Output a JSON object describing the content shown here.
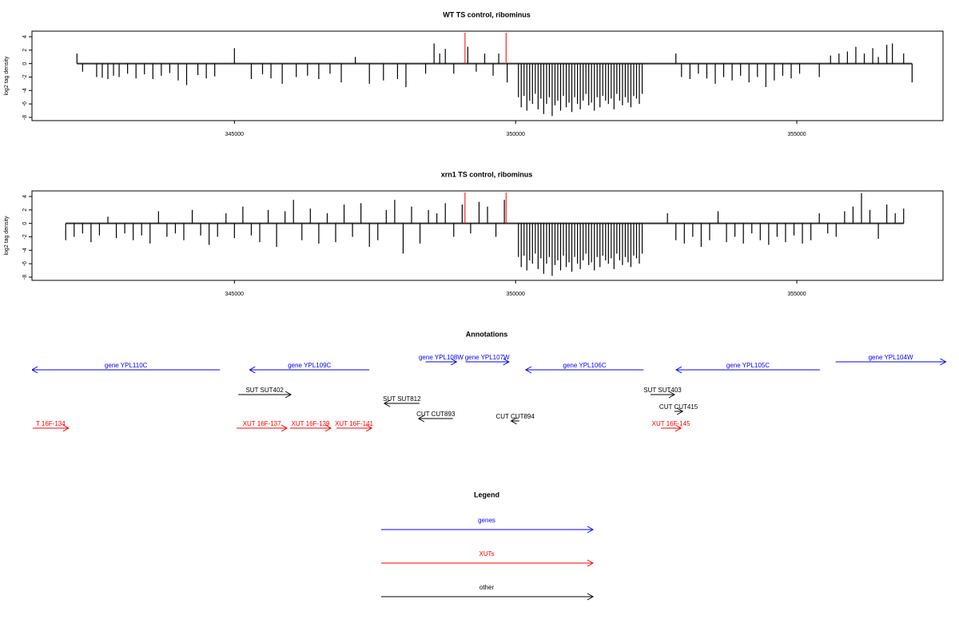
{
  "chart_data": [
    {
      "type": "bar",
      "title": "WT TS control, ribominus",
      "ylabel": "log2 tag density",
      "color": "#000000",
      "x": [
        342200,
        342300,
        342550,
        342650,
        342750,
        342850,
        342950,
        343100,
        343250,
        343400,
        343550,
        343700,
        343850,
        344000,
        344150,
        344350,
        344500,
        344650,
        345000,
        345300,
        345500,
        345650,
        345850,
        346100,
        346300,
        346500,
        346700,
        346900,
        347150,
        347400,
        347650,
        347900,
        348050,
        348400,
        348550,
        348650,
        348750,
        348900,
        349150,
        349300,
        349450,
        349600,
        349700,
        349850,
        350050,
        350100,
        350150,
        350200,
        350250,
        350300,
        350350,
        350400,
        350450,
        350500,
        350550,
        350600,
        350650,
        350700,
        350750,
        350800,
        350850,
        350900,
        350950,
        351000,
        351050,
        351100,
        351150,
        351200,
        351250,
        351300,
        351350,
        351400,
        351450,
        351500,
        351550,
        351600,
        351650,
        351700,
        351750,
        351800,
        351850,
        351900,
        351950,
        352000,
        352050,
        352100,
        352150,
        352200,
        352250,
        352850,
        352950,
        353100,
        353250,
        353400,
        353550,
        353700,
        353850,
        354000,
        354150,
        354300,
        354450,
        354600,
        354750,
        354900,
        355050,
        355400,
        355600,
        355750,
        355900,
        356050,
        356200,
        356350,
        356450,
        356600,
        356700,
        356900,
        357050
      ],
      "values": [
        1.5,
        -1.2,
        -2,
        -2.1,
        -2.3,
        -1.8,
        -2,
        -1.5,
        -2.2,
        -1.6,
        -2.3,
        -1.8,
        -1.4,
        -2.5,
        -3.2,
        -1.7,
        -2.2,
        -1.9,
        2.3,
        -2.3,
        -1.6,
        -2.2,
        -3,
        -2,
        -1.8,
        -2.3,
        -1.5,
        -2.8,
        1,
        -3,
        -2.5,
        -2.3,
        -3.5,
        -1.5,
        3,
        1.5,
        2.2,
        -1.5,
        2.5,
        -1.2,
        1.5,
        -1.8,
        1.5,
        -2.8,
        -5,
        -6.5,
        -4.8,
        -7,
        -5.5,
        -6,
        -4.5,
        -6.8,
        -5.2,
        -7.5,
        -6,
        -5,
        -7.8,
        -6.2,
        -5.5,
        -7,
        -4.8,
        -6.5,
        -5.8,
        -7.2,
        -5,
        -6,
        -6.8,
        -5.5,
        -4.5,
        -6.2,
        -5.8,
        -7,
        -5,
        -6.5,
        -4.8,
        -5.5,
        -6,
        -5.2,
        -6.8,
        -4.5,
        -5.5,
        -6.2,
        -5,
        -5.8,
        -6.5,
        -4.8,
        -5.2,
        -6,
        -4.5,
        1.5,
        -2,
        -2.3,
        -1.5,
        -2.2,
        -3,
        -2,
        -2.5,
        -1.8,
        -2.8,
        -2,
        -3.5,
        -2.5,
        -1.8,
        -2.2,
        -1.5,
        -2,
        1.2,
        1.5,
        1.8,
        2.5,
        1.5,
        2.3,
        1,
        2.8,
        3,
        1.5,
        -2.8
      ],
      "highlight_x": [
        349100,
        349830
      ],
      "highlight_color": "#ff0000",
      "xlim": [
        341400,
        357600
      ],
      "ylim": [
        -8.48,
        4.83
      ],
      "xticks": [
        345000,
        350000,
        355000
      ],
      "yticks": [
        -8,
        -6,
        -4,
        -2,
        0,
        2,
        4
      ]
    },
    {
      "type": "bar",
      "title": "xrn1 TS control, ribominus",
      "ylabel": "log2 tag density",
      "color": "#000000",
      "x": [
        342000,
        342150,
        342300,
        342450,
        342600,
        342750,
        342900,
        343050,
        343200,
        343350,
        343500,
        343650,
        343800,
        343950,
        344100,
        344250,
        344400,
        344550,
        344700,
        344850,
        345000,
        345150,
        345300,
        345450,
        345600,
        345750,
        345900,
        346050,
        346200,
        346350,
        346500,
        346650,
        346800,
        346950,
        347100,
        347250,
        347400,
        347550,
        347700,
        347850,
        348000,
        348150,
        348300,
        348450,
        348600,
        348750,
        348900,
        349050,
        349200,
        349350,
        349500,
        349650,
        349800,
        350050,
        350100,
        350150,
        350200,
        350250,
        350300,
        350350,
        350400,
        350450,
        350500,
        350550,
        350600,
        350650,
        350700,
        350750,
        350800,
        350850,
        350900,
        350950,
        351000,
        351050,
        351100,
        351150,
        351200,
        351250,
        351300,
        351350,
        351400,
        351450,
        351500,
        351550,
        351600,
        351650,
        351700,
        351750,
        351800,
        351850,
        351900,
        351950,
        352000,
        352050,
        352100,
        352150,
        352200,
        352250,
        352700,
        352850,
        353000,
        353150,
        353300,
        353450,
        353600,
        353750,
        353900,
        354050,
        354200,
        354350,
        354500,
        354650,
        354800,
        354950,
        355100,
        355250,
        355400,
        355550,
        355700,
        355850,
        356000,
        356150,
        356300,
        356450,
        356600,
        356750,
        356900
      ],
      "values": [
        -2.5,
        -2,
        -1.5,
        -2.8,
        -1.8,
        1,
        -2.2,
        -1.5,
        -2.5,
        -1.8,
        -3,
        1.8,
        -2,
        -1.5,
        -2.5,
        2,
        -1.8,
        -3.2,
        -2,
        1.5,
        -2.2,
        2.5,
        -1.8,
        -2.8,
        2,
        -3.5,
        1.8,
        3.5,
        -2.5,
        2.2,
        -3,
        1.5,
        -2.8,
        2.8,
        -2,
        3,
        -3.5,
        -2.5,
        2,
        3.5,
        -4.5,
        2.5,
        -3,
        2,
        1.5,
        3,
        -2,
        2.8,
        -1.5,
        3.2,
        2.5,
        -2,
        3.5,
        -5,
        -6.5,
        -4.8,
        -7,
        -5.5,
        -6,
        -4.5,
        -6.8,
        -5.2,
        -7.5,
        -6,
        -5,
        -7.8,
        -6.2,
        -5.5,
        -7,
        -4.8,
        -6.5,
        -5.8,
        -7.2,
        -5,
        -6,
        -6.8,
        -5.5,
        -4.5,
        -6.2,
        -5.8,
        -7,
        -5,
        -6.5,
        -4.8,
        -5.5,
        -6,
        -5.2,
        -6.8,
        -4.5,
        -5.5,
        -6.2,
        -5,
        -5.8,
        -6.5,
        -4.8,
        -5.2,
        -6,
        -4.5,
        1.5,
        -2.5,
        -3,
        -2,
        -3.5,
        -2.5,
        1.8,
        -2.8,
        -2,
        -3,
        -1.5,
        -2.5,
        -3.2,
        -2,
        -2.8,
        -1.8,
        -3,
        -2.5,
        1.5,
        -1.5,
        -2,
        1.8,
        2.5,
        4.5,
        2,
        -2.3,
        2.8,
        1.5,
        2.2
      ],
      "highlight_x": [
        349100,
        349830
      ],
      "highlight_color": "#ff0000",
      "xlim": [
        341400,
        357600
      ],
      "ylim": [
        -8.48,
        4.83
      ],
      "xticks": [
        345000,
        350000,
        355000
      ],
      "yticks": [
        -8,
        -6,
        -4,
        -2,
        0,
        2,
        4
      ]
    }
  ],
  "annotations": {
    "title": "Annotations",
    "colors": {
      "gene": "#0000ff",
      "XUT": "#ff0000",
      "other": "#000000"
    },
    "features": [
      {
        "label": "gene YPL110C",
        "type": "gene",
        "start": 344745,
        "end": 341400
      },
      {
        "label": "gene YPL109C",
        "type": "gene",
        "start": 347400,
        "end": 345270
      },
      {
        "label": "gene YPL108W",
        "type": "gene",
        "start": 348400,
        "end": 348950
      },
      {
        "label": "gene YPL107W",
        "type": "gene",
        "start": 349110,
        "end": 349880
      },
      {
        "label": "gene YPL106C",
        "type": "gene",
        "start": 352275,
        "end": 350180
      },
      {
        "label": "gene YPL105C",
        "type": "gene",
        "start": 355410,
        "end": 352855
      },
      {
        "label": "gene YPL104W",
        "type": "gene",
        "start": 355690,
        "end": 357650
      },
      {
        "label": "SUT SUT402",
        "type": "other",
        "start": 345070,
        "end": 346005
      },
      {
        "label": "SUT SUT812",
        "type": "other",
        "start": 348290,
        "end": 347665
      },
      {
        "label": "CUT CUT893",
        "type": "other",
        "start": 348885,
        "end": 348275
      },
      {
        "label": "CUT CUT894",
        "type": "other",
        "start": 350065,
        "end": 349920
      },
      {
        "label": "SUT SUT403",
        "type": "other",
        "start": 352400,
        "end": 352825
      },
      {
        "label": "CUT CUT415",
        "type": "other",
        "start": 352825,
        "end": 352970
      },
      {
        "label": "T 16F-134",
        "type": "XUT",
        "start": 341413,
        "end": 342050
      },
      {
        "label": "XUT 16F-137",
        "type": "XUT",
        "start": 345040,
        "end": 345935
      },
      {
        "label": "XUT 16F-139",
        "type": "XUT",
        "start": 345990,
        "end": 346715
      },
      {
        "label": "XUT 16F-141",
        "type": "XUT",
        "start": 346815,
        "end": 347440
      },
      {
        "label": "XUT 16F-145",
        "type": "XUT",
        "start": 352585,
        "end": 352940
      }
    ]
  },
  "legend": {
    "title": "Legend",
    "items": [
      {
        "label": "genes",
        "color": "#0000ff"
      },
      {
        "label": "XUTs",
        "color": "#ff0000"
      },
      {
        "label": "other",
        "color": "#000000"
      }
    ]
  }
}
